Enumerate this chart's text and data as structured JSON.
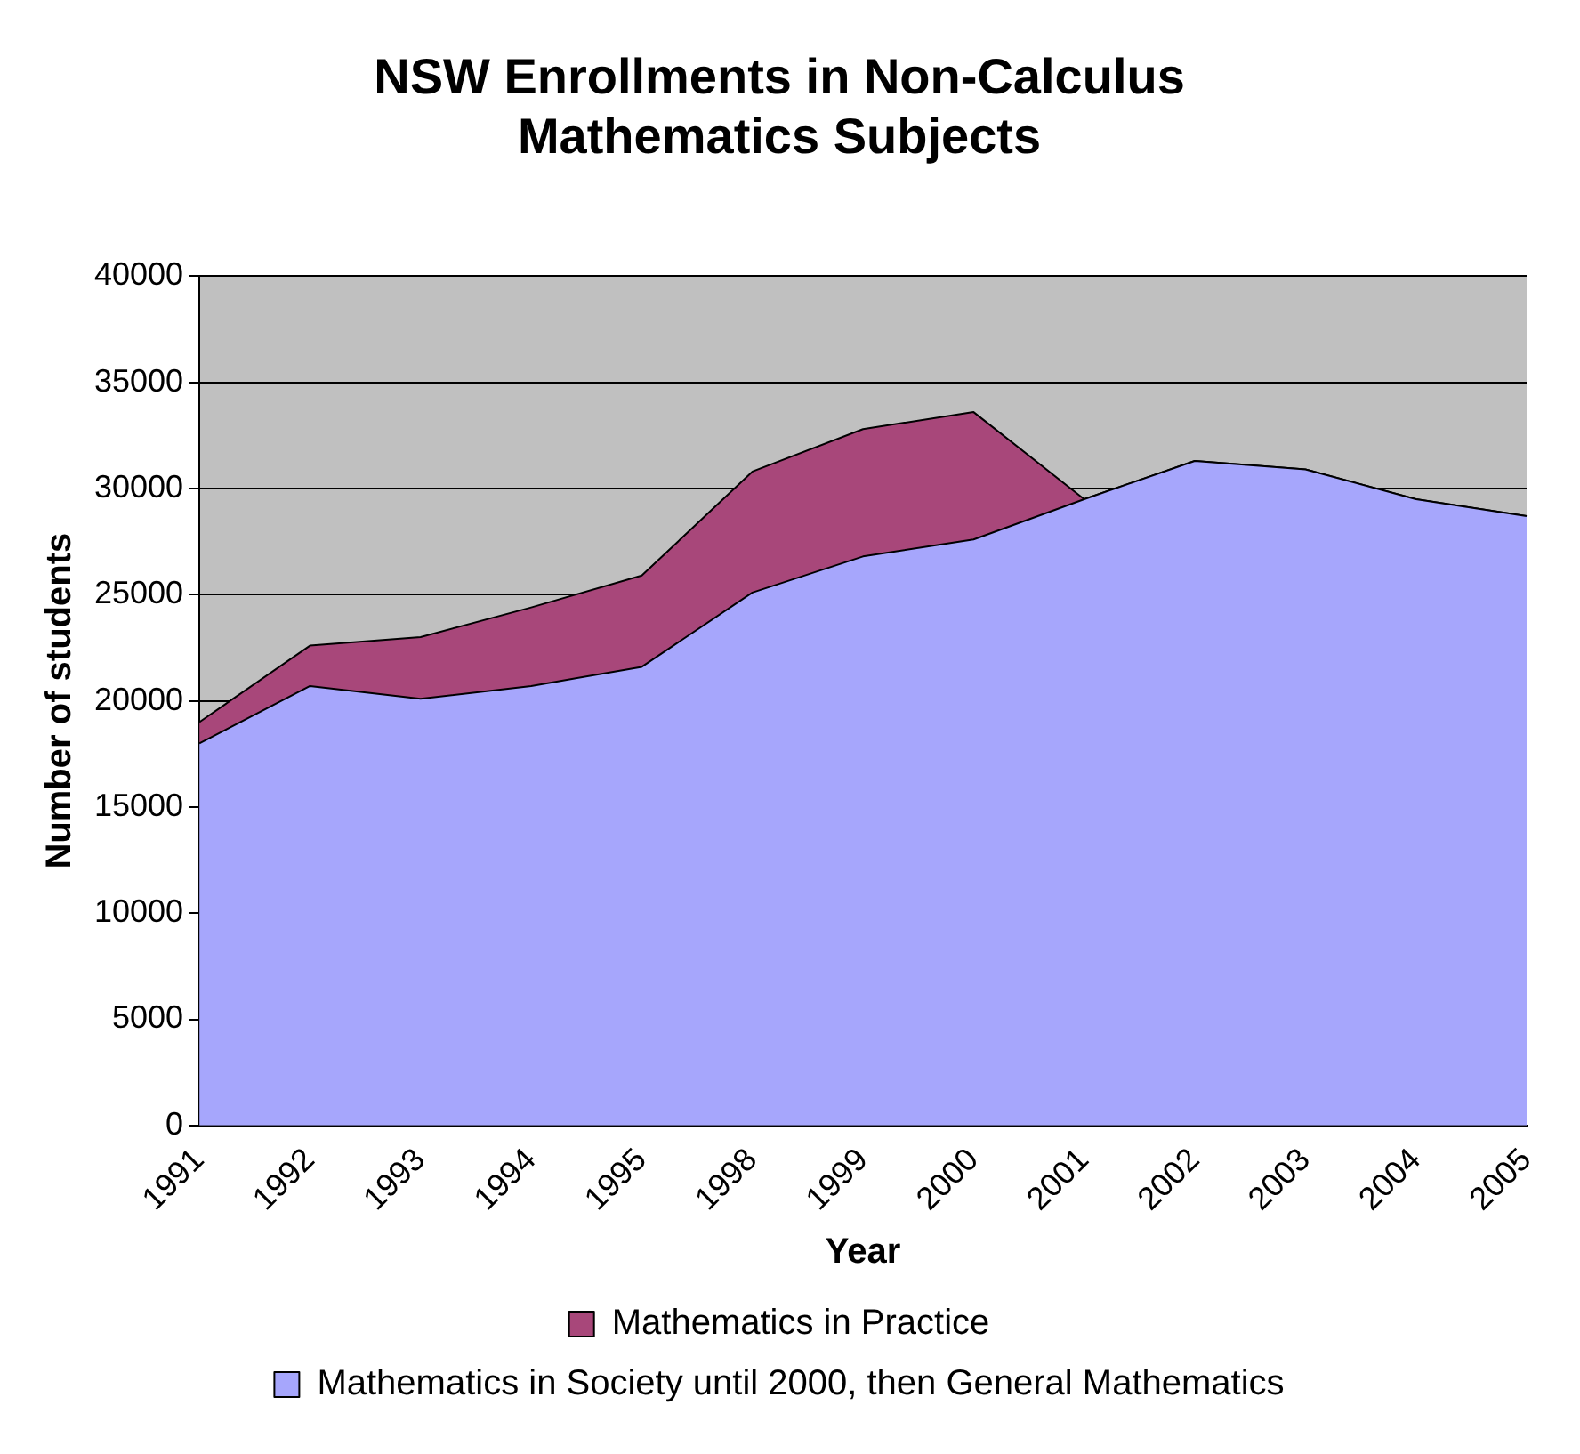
{
  "chart_data": {
    "type": "area",
    "title": "NSW Enrollments in Non-Calculus Mathematics Subjects",
    "xlabel": "Year",
    "ylabel": "Number of students",
    "categories": [
      "1991",
      "1992",
      "1993",
      "1994",
      "1995",
      "1998",
      "1999",
      "2000",
      "2001",
      "2002",
      "2003",
      "2004",
      "2005"
    ],
    "series": [
      {
        "name": "Mathematics in Society until 2000, then General Mathematics",
        "color": "#a6a6fc",
        "values": [
          18000,
          20700,
          20100,
          20700,
          21600,
          25100,
          26800,
          27600,
          29500,
          31300,
          30900,
          29500,
          28700
        ]
      },
      {
        "name": "Mathematics in Practice",
        "color": "#a8477a",
        "values": [
          1000,
          1900,
          2900,
          3700,
          4300,
          5700,
          6000,
          6000,
          0,
          0,
          0,
          0,
          0
        ]
      }
    ],
    "stacked": true,
    "ylim": [
      0,
      40000
    ],
    "yticks": [
      0,
      5000,
      10000,
      15000,
      20000,
      25000,
      30000,
      35000,
      40000
    ],
    "grid": "y",
    "legend": "bottom"
  }
}
